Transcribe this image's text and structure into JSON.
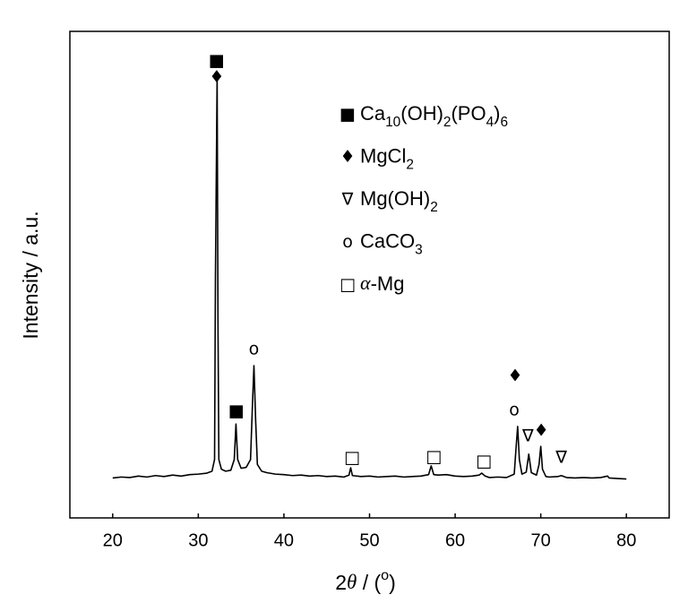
{
  "chart_data": {
    "type": "line",
    "x_label": [
      {
        "text": "2"
      },
      {
        "italic": "θ"
      },
      {
        "text": " / ("
      },
      {
        "sup": "o"
      },
      {
        "text": ")"
      }
    ],
    "y_label": "Intensity / a.u.",
    "xlim": [
      15,
      85
    ],
    "ylim": [
      0,
      100
    ],
    "xticks": [
      20,
      30,
      40,
      50,
      60,
      70,
      80
    ],
    "x": [
      20,
      21,
      22,
      23,
      24,
      25,
      26,
      27,
      28,
      29,
      30,
      31,
      31.6,
      31.9,
      32.0,
      32.1,
      32.2,
      32.3,
      32.4,
      32.7,
      33.2,
      33.8,
      34.2,
      34.4,
      34.6,
      35,
      35.6,
      36.1,
      36.3,
      36.5,
      36.7,
      36.9,
      37.4,
      38,
      39,
      40,
      41,
      42,
      43,
      44,
      45,
      46,
      47,
      47.6,
      47.8,
      48,
      49,
      50,
      51,
      52,
      53,
      54,
      55,
      56,
      56.9,
      57.2,
      57.5,
      58,
      59,
      60,
      61,
      62,
      62.8,
      63.1,
      63.5,
      64,
      65,
      66,
      66.9,
      67.1,
      67.3,
      67.5,
      67.8,
      68.3,
      68.6,
      68.9,
      69.5,
      69.8,
      70.0,
      70.2,
      70.6,
      71,
      72,
      72.4,
      73,
      74,
      75,
      76,
      77,
      77.8,
      78,
      79,
      80
    ],
    "series": [
      {
        "color": "#000000",
        "values": [
          8.2,
          8.4,
          8.3,
          8.6,
          8.4,
          8.7,
          8.5,
          8.8,
          8.6,
          8.9,
          9.0,
          9.2,
          9.6,
          12,
          49,
          70,
          90.8,
          40,
          12,
          10,
          9.6,
          9.8,
          12,
          19.3,
          12,
          10.2,
          10.4,
          12,
          22,
          31.3,
          20,
          11,
          9.6,
          9.3,
          9.0,
          8.9,
          8.7,
          8.8,
          8.6,
          8.7,
          8.5,
          8.6,
          8.4,
          8.8,
          10.3,
          8.7,
          8.5,
          8.6,
          8.4,
          8.5,
          8.6,
          8.4,
          8.5,
          8.6,
          8.9,
          10.7,
          8.9,
          8.8,
          8.9,
          8.6,
          8.5,
          8.6,
          8.8,
          9.2,
          8.6,
          8.3,
          8.4,
          8.3,
          9,
          14,
          18.8,
          12,
          9.0,
          9.4,
          13.1,
          9.3,
          8.8,
          11,
          14.7,
          10,
          8.5,
          8.4,
          8.5,
          8.7,
          8.3,
          8.2,
          8.3,
          8.2,
          8.3,
          8.6,
          8.2,
          8.1,
          8.0
        ]
      }
    ],
    "annotations": [
      {
        "text": "■",
        "x": 32.15,
        "y": 93.9
      },
      {
        "text": "♦",
        "x": 32.15,
        "y": 90.5
      },
      {
        "text": "o",
        "x": 36.5,
        "y": 34.6
      },
      {
        "text": "■",
        "x": 34.45,
        "y": 21.9
      },
      {
        "text": "□",
        "x": 47.96,
        "y": 12.3
      },
      {
        "text": "□",
        "x": 57.5,
        "y": 12.5
      },
      {
        "text": "□",
        "x": 63.35,
        "y": 11.6
      },
      {
        "text": "♦",
        "x": 67.0,
        "y": 29.1
      },
      {
        "text": "o",
        "x": 66.9,
        "y": 22.1
      },
      {
        "text": "∇",
        "x": 68.5,
        "y": 16.8
      },
      {
        "text": "♦",
        "x": 70.05,
        "y": 17.9
      },
      {
        "text": "∇",
        "x": 72.4,
        "y": 12.3
      }
    ],
    "legend": [
      {
        "symbol": "■",
        "label": [
          {
            "text": "Ca"
          },
          {
            "sub": "10"
          },
          {
            "text": "(OH)"
          },
          {
            "sub": "2"
          },
          {
            "text": "(PO"
          },
          {
            "sub": "4"
          },
          {
            "text": ")"
          },
          {
            "sub": "6"
          }
        ]
      },
      {
        "symbol": "♦",
        "label": [
          {
            "text": "MgCl"
          },
          {
            "sub": "2"
          }
        ]
      },
      {
        "symbol": "∇",
        "label": [
          {
            "text": "Mg(OH)"
          },
          {
            "sub": "2"
          }
        ]
      },
      {
        "symbol": "o",
        "label": [
          {
            "text": "CaCO"
          },
          {
            "sub": "3"
          }
        ]
      },
      {
        "symbol": "□",
        "label": [
          {
            "italic": "α"
          },
          {
            "text": "-Mg"
          }
        ]
      }
    ]
  }
}
